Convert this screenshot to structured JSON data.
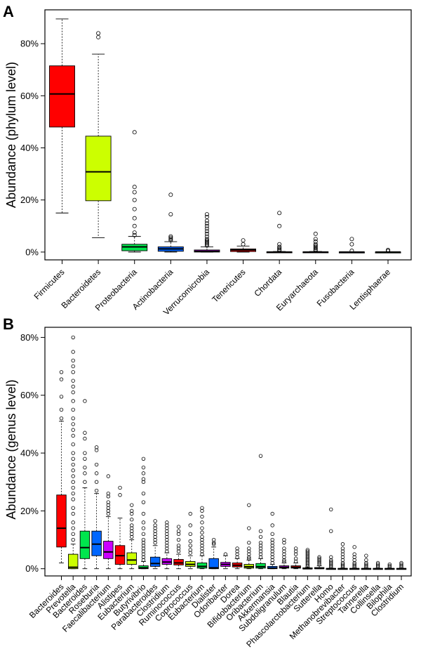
{
  "chart_data": [
    {
      "id": "A",
      "type": "boxplot",
      "panel_label": "A",
      "ylabel": "Abundance (phylum level)",
      "ylim": [
        -3,
        93
      ],
      "yticks": [
        0,
        20,
        40,
        60,
        80
      ],
      "tick_suffix": "%",
      "boxes": [
        {
          "name": "Firmicutes",
          "color": "#ff0000",
          "q1": 48,
          "median": 60.7,
          "q3": 71.5,
          "whisker_low": 15,
          "whisker_high": 89.5,
          "outliers": []
        },
        {
          "name": "Bacteroidetes",
          "color": "#ccff00",
          "q1": 19.7,
          "median": 30.8,
          "q3": 44.5,
          "whisker_low": 5.5,
          "whisker_high": 76,
          "outliers": [
            82.5,
            84
          ]
        },
        {
          "name": "Proteobacteria",
          "color": "#00e64d",
          "q1": 0.5,
          "median": 2,
          "q3": 3,
          "whisker_low": 0,
          "whisker_high": 6,
          "outliers": [
            6.5,
            7.5,
            10,
            13,
            16.5,
            20,
            23,
            25,
            46
          ]
        },
        {
          "name": "Actinobacteria",
          "color": "#0066ff",
          "q1": 0.3,
          "median": 1.2,
          "q3": 2,
          "whisker_low": 0,
          "whisker_high": 4,
          "outliers": [
            4.5,
            5,
            5.5,
            6,
            14.5,
            22
          ]
        },
        {
          "name": "Verrucomicrobia",
          "color": "#cc00ff",
          "q1": 0,
          "median": 0.3,
          "q3": 0.8,
          "whisker_low": 0,
          "whisker_high": 2,
          "outliers": [
            2.5,
            3,
            3.5,
            4,
            4.5,
            5,
            6,
            7,
            8,
            9,
            10,
            11,
            12,
            13.5,
            14.5
          ]
        },
        {
          "name": "Tenericutes",
          "color": "#ff0000",
          "q1": 0.2,
          "median": 0.8,
          "q3": 1.2,
          "whisker_low": 0,
          "whisker_high": 2.3,
          "outliers": [
            3,
            4.5
          ]
        },
        {
          "name": "Chordata",
          "color": "#ff0000",
          "q1": 0,
          "median": 0,
          "q3": 0.1,
          "whisker_low": 0,
          "whisker_high": 0.2,
          "outliers": [
            0.5,
            1,
            1.5,
            2,
            3,
            10,
            15
          ]
        },
        {
          "name": "Euryarchaeota",
          "color": "#cc00ff",
          "q1": 0,
          "median": 0,
          "q3": 0.1,
          "whisker_low": 0,
          "whisker_high": 0.2,
          "outliers": [
            0.5,
            1,
            1.5,
            2,
            2.5,
            3,
            4,
            5,
            7
          ]
        },
        {
          "name": "Fusobacteria",
          "color": "#0066ff",
          "q1": 0,
          "median": 0,
          "q3": 0.05,
          "whisker_low": 0,
          "whisker_high": 0.1,
          "outliers": [
            0.5,
            3,
            5
          ]
        },
        {
          "name": "Lentisphaerae",
          "color": "#00e64d",
          "q1": 0,
          "median": 0,
          "q3": 0.05,
          "whisker_low": 0,
          "whisker_high": 0.1,
          "outliers": [
            0.4,
            0.8
          ]
        }
      ]
    },
    {
      "id": "B",
      "type": "boxplot",
      "panel_label": "B",
      "ylabel": "Abundance (genus level)",
      "ylim": [
        -2.5,
        83.5
      ],
      "yticks": [
        0,
        20,
        40,
        60,
        80
      ],
      "tick_suffix": "%",
      "boxes": [
        {
          "name": "Bacteroides",
          "color": "#ff0000",
          "q1": 7.5,
          "median": 14,
          "q3": 25.5,
          "whisker_low": 2,
          "whisker_high": 51,
          "outliers": [
            52,
            55,
            59.5,
            65.5,
            68
          ]
        },
        {
          "name": "Prevotella",
          "color": "#ccff00",
          "q1": 0,
          "median": 0.5,
          "q3": 5,
          "whisker_low": 0,
          "whisker_high": 8.5,
          "outliers": [
            10,
            12,
            14,
            16,
            19,
            21,
            24,
            26,
            28,
            30,
            32,
            34,
            36,
            38,
            40,
            43,
            46,
            48,
            50,
            52,
            55,
            58,
            61,
            63,
            65,
            68,
            70,
            72,
            75,
            80
          ]
        },
        {
          "name": "Bacteroides",
          "color": "#00e64d",
          "q1": 3.5,
          "median": 7.3,
          "q3": 13,
          "whisker_low": 0,
          "whisker_high": 28,
          "outliers": [
            30,
            33,
            35,
            38,
            40,
            45,
            47,
            58
          ]
        },
        {
          "name": "Roseburia",
          "color": "#0066ff",
          "q1": 4.5,
          "median": 8.5,
          "q3": 13,
          "whisker_low": 0,
          "whisker_high": 26,
          "outliers": [
            27,
            30,
            33,
            36,
            41,
            42
          ]
        },
        {
          "name": "Faecalibacterium",
          "color": "#cc00ff",
          "q1": 3.5,
          "median": 5.8,
          "q3": 9.5,
          "whisker_low": 0,
          "whisker_high": 18,
          "outliers": [
            19,
            20,
            21,
            22,
            23,
            25,
            26,
            32
          ]
        },
        {
          "name": "Alistipes",
          "color": "#ff0000",
          "q1": 1.5,
          "median": 4.5,
          "q3": 8,
          "whisker_low": 0,
          "whisker_high": 17.5,
          "outliers": [
            25.5,
            28
          ]
        },
        {
          "name": "Eubacterium",
          "color": "#ccff00",
          "q1": 1.5,
          "median": 3,
          "q3": 5.5,
          "whisker_low": 0,
          "whisker_high": 10,
          "outliers": [
            11,
            12,
            13,
            14,
            15,
            17,
            19,
            20,
            22
          ]
        },
        {
          "name": "Butyrivibrio",
          "color": "#00e64d",
          "q1": 0,
          "median": 0.3,
          "q3": 1,
          "whisker_low": 0,
          "whisker_high": 2.5,
          "outliers": [
            3,
            4,
            5,
            6,
            7,
            8,
            9,
            10,
            12,
            14,
            16,
            19,
            23,
            26,
            30,
            31,
            33,
            35,
            38
          ]
        },
        {
          "name": "Parabacteroides",
          "color": "#0066ff",
          "q1": 0.8,
          "median": 1.8,
          "q3": 4,
          "whisker_low": 0,
          "whisker_high": 8,
          "outliers": [
            9,
            10,
            11,
            12,
            13,
            14,
            15,
            16.5
          ]
        },
        {
          "name": "Clostridium",
          "color": "#cc00ff",
          "q1": 1.5,
          "median": 2.3,
          "q3": 3.5,
          "whisker_low": 0,
          "whisker_high": 5.5,
          "outliers": [
            6,
            7,
            8,
            9,
            10,
            11,
            12,
            13,
            14,
            15,
            16
          ]
        },
        {
          "name": "Ruminococcus",
          "color": "#ff0000",
          "q1": 1.3,
          "median": 2,
          "q3": 3.2,
          "whisker_low": 0,
          "whisker_high": 5,
          "outliers": [
            6,
            7,
            8,
            10,
            12,
            13,
            14.5
          ]
        },
        {
          "name": "Coprococcus",
          "color": "#ccff00",
          "q1": 0.8,
          "median": 1.5,
          "q3": 2.5,
          "whisker_low": 0,
          "whisker_high": 4.5,
          "outliers": [
            5.5,
            6.5,
            8,
            9.5,
            12,
            15,
            19
          ]
        },
        {
          "name": "Eubacterium",
          "color": "#00e64d",
          "q1": 0.2,
          "median": 0.8,
          "q3": 2,
          "whisker_low": 0,
          "whisker_high": 4.5,
          "outliers": [
            5,
            6,
            7,
            8,
            9,
            10,
            11,
            12.5,
            14,
            16,
            18,
            20,
            21
          ]
        },
        {
          "name": "Dialister",
          "color": "#0066ff",
          "q1": 0,
          "median": 0.3,
          "q3": 3.5,
          "whisker_low": 0,
          "whisker_high": 7.5,
          "outliers": [
            8.5,
            9,
            10
          ]
        },
        {
          "name": "Odoribacter",
          "color": "#cc00ff",
          "q1": 0.8,
          "median": 1.5,
          "q3": 2.2,
          "whisker_low": 0,
          "whisker_high": 4.5,
          "outliers": [
            5
          ]
        },
        {
          "name": "Dorea",
          "color": "#ff0000",
          "q1": 0.6,
          "median": 1.2,
          "q3": 2,
          "whisker_low": 0,
          "whisker_high": 3.5,
          "outliers": [
            4,
            5,
            6,
            7
          ]
        },
        {
          "name": "Bifidobacterium",
          "color": "#ccff00",
          "q1": 0.2,
          "median": 0.7,
          "q3": 1.5,
          "whisker_low": 0,
          "whisker_high": 3,
          "outliers": [
            3.5,
            4,
            5,
            6,
            7,
            9,
            14,
            22
          ]
        },
        {
          "name": "Oribacterium",
          "color": "#00e64d",
          "q1": 0.2,
          "median": 0.7,
          "q3": 1.8,
          "whisker_low": 0,
          "whisker_high": 3.5,
          "outliers": [
            4,
            5,
            6,
            7,
            8,
            9,
            11,
            13,
            39
          ]
        },
        {
          "name": "Akkermansia",
          "color": "#0066ff",
          "q1": 0,
          "median": 0.2,
          "q3": 0.8,
          "whisker_low": 0,
          "whisker_high": 1.5,
          "outliers": [
            2,
            3,
            4,
            5,
            6,
            7,
            8,
            9,
            10,
            12,
            15,
            19
          ]
        },
        {
          "name": "Subdoligranulum",
          "color": "#cc00ff",
          "q1": 0.2,
          "median": 0.5,
          "q3": 1,
          "whisker_low": 0,
          "whisker_high": 2,
          "outliers": [
            2.5,
            3,
            4,
            5,
            6,
            7,
            9,
            10
          ]
        },
        {
          "name": "Blautia",
          "color": "#ff0000",
          "q1": 0.2,
          "median": 0.5,
          "q3": 1,
          "whisker_low": 0,
          "whisker_high": 2,
          "outliers": [
            2.5,
            3.5,
            5,
            6,
            7
          ]
        },
        {
          "name": "Phascolarctobacterium",
          "color": "#ccff00",
          "q1": 0,
          "median": 0,
          "q3": 0.3,
          "whisker_low": 0,
          "whisker_high": 0.6,
          "outliers": [
            1,
            1.5,
            2,
            2.5,
            3,
            3.5,
            4,
            4.5,
            5,
            5.5,
            6,
            6.5
          ]
        },
        {
          "name": "Sutterella",
          "color": "#00e64d",
          "q1": 0,
          "median": 0.1,
          "q3": 0.4,
          "whisker_low": 0,
          "whisker_high": 1,
          "outliers": [
            1.5,
            2,
            2.5,
            3,
            3.5,
            4
          ]
        },
        {
          "name": "Homo",
          "color": "#0066ff",
          "q1": 0,
          "median": 0,
          "q3": 0.1,
          "whisker_low": 0,
          "whisker_high": 0.2,
          "outliers": [
            0.5,
            1,
            1.5,
            2,
            2.5,
            3,
            4,
            13,
            20.5
          ]
        },
        {
          "name": "Methanobrevibacter",
          "color": "#cc00ff",
          "q1": 0,
          "median": 0,
          "q3": 0.1,
          "whisker_low": 0,
          "whisker_high": 0.2,
          "outliers": [
            0.5,
            1,
            1.5,
            2,
            3,
            4,
            5,
            6,
            7,
            8.5
          ]
        },
        {
          "name": "Streptococcus",
          "color": "#ff0000",
          "q1": 0,
          "median": 0,
          "q3": 0.1,
          "whisker_low": 0,
          "whisker_high": 0.2,
          "outliers": [
            0.5,
            1,
            1.5,
            2,
            3,
            4,
            5,
            7.5
          ]
        },
        {
          "name": "Tannerella",
          "color": "#ccff00",
          "q1": 0,
          "median": 0,
          "q3": 0.1,
          "whisker_low": 0,
          "whisker_high": 0.2,
          "outliers": [
            0.5,
            1,
            1.5,
            2,
            3,
            4.5
          ]
        },
        {
          "name": "Collinsella",
          "color": "#00e64d",
          "q1": 0,
          "median": 0,
          "q3": 0.1,
          "whisker_low": 0,
          "whisker_high": 0.2,
          "outliers": [
            0.5,
            1,
            1.5,
            2
          ]
        },
        {
          "name": "Bilophila",
          "color": "#0066ff",
          "q1": 0,
          "median": 0,
          "q3": 0.1,
          "whisker_low": 0,
          "whisker_high": 0.2,
          "outliers": [
            0.5,
            1,
            1.5
          ]
        },
        {
          "name": "Clostridium",
          "color": "#cc00ff",
          "q1": 0,
          "median": 0,
          "q3": 0.1,
          "whisker_low": 0,
          "whisker_high": 0.2,
          "outliers": [
            0.5,
            1,
            1.5,
            2
          ]
        }
      ]
    }
  ]
}
